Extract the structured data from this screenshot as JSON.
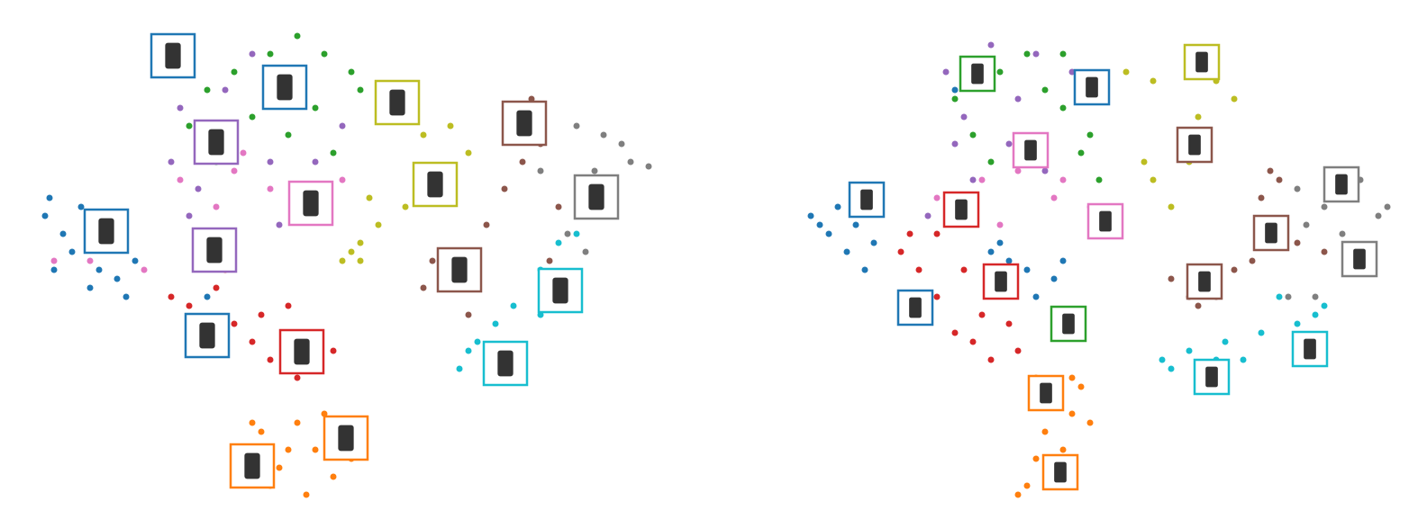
{
  "chart_data": [
    {
      "type": "scatter",
      "xlim": [
        0,
        787
      ],
      "ylim": [
        587,
        0
      ],
      "series": [
        {
          "color": "#1f77b4",
          "x": [
            50,
            70,
            90,
            110,
            130,
            150,
            60,
            100,
            80,
            140,
            120,
            55,
            215,
            230,
            240
          ],
          "values": [
            240,
            260,
            230,
            300,
            310,
            290,
            300,
            320,
            280,
            330,
            270,
            220,
            375,
            330,
            280
          ]
        },
        {
          "color": "#ff7f0e",
          "x": [
            260,
            290,
            310,
            330,
            350,
            370,
            380,
            300,
            340,
            360,
            320,
            280,
            390
          ],
          "values": [
            500,
            480,
            520,
            470,
            500,
            530,
            480,
            540,
            550,
            460,
            500,
            470,
            510
          ]
        },
        {
          "color": "#2ca02c",
          "x": [
            230,
            260,
            300,
            330,
            360,
            390,
            350,
            320,
            280,
            210,
            240,
            370,
            400
          ],
          "values": [
            100,
            80,
            60,
            40,
            60,
            80,
            120,
            150,
            130,
            140,
            180,
            170,
            100
          ]
        },
        {
          "color": "#d62728",
          "x": [
            220,
            240,
            260,
            280,
            300,
            320,
            350,
            370,
            290,
            210,
            330,
            250,
            190
          ],
          "values": [
            290,
            320,
            360,
            380,
            400,
            340,
            370,
            390,
            350,
            340,
            420,
            300,
            330
          ]
        },
        {
          "color": "#9467bd",
          "x": [
            190,
            220,
            250,
            280,
            330,
            300,
            350,
            210,
            240,
            200,
            310,
            380
          ],
          "values": [
            180,
            210,
            100,
            60,
            100,
            180,
            180,
            240,
            160,
            120,
            250,
            140
          ]
        },
        {
          "color": "#8c564b",
          "x": [
            480,
            500,
            520,
            540,
            560,
            580,
            600,
            620,
            590,
            470,
            530,
            610
          ],
          "values": [
            290,
            320,
            350,
            250,
            210,
            180,
            160,
            230,
            110,
            320,
            280,
            290
          ]
        },
        {
          "color": "#e377c2",
          "x": [
            200,
            260,
            300,
            330,
            380,
            100,
            60,
            240,
            270,
            160
          ],
          "values": [
            200,
            190,
            210,
            220,
            200,
            290,
            290,
            230,
            170,
            300
          ]
        },
        {
          "color": "#7f7f7f",
          "x": [
            640,
            670,
            700,
            720,
            660,
            630,
            650,
            680,
            690,
            600
          ],
          "values": [
            140,
            150,
            180,
            185,
            190,
            260,
            280,
            200,
            160,
            190
          ]
        },
        {
          "color": "#bcbd22",
          "x": [
            380,
            400,
            420,
            450,
            470,
            500,
            520,
            410,
            440,
            400,
            480,
            390
          ],
          "values": [
            290,
            270,
            250,
            230,
            150,
            140,
            170,
            220,
            110,
            290,
            220,
            280
          ]
        },
        {
          "color": "#17becf",
          "x": [
            510,
            530,
            550,
            570,
            600,
            630,
            640,
            560,
            580,
            520,
            620,
            600
          ],
          "values": [
            410,
            380,
            360,
            340,
            350,
            330,
            260,
            400,
            420,
            390,
            270,
            300
          ]
        }
      ]
    },
    {
      "type": "scatter",
      "xlim": [
        787,
        1574
      ],
      "ylim": [
        587,
        0
      ],
      "series": [
        {
          "color": "#1f77b4",
          "x": [
            900,
            920,
            940,
            960,
            950,
            930,
            970,
            910,
            1110,
            1140,
            1170,
            1120,
            1180,
            1100,
            1150,
            1060
          ],
          "values": [
            240,
            260,
            280,
            300,
            250,
            230,
            270,
            250,
            270,
            300,
            310,
            290,
            290,
            280,
            330,
            100
          ]
        },
        {
          "color": "#ff7f0e",
          "x": [
            1150,
            1170,
            1190,
            1200,
            1180,
            1150,
            1140,
            1160,
            1210,
            1190,
            1130,
            1170
          ],
          "values": [
            420,
            440,
            460,
            430,
            500,
            510,
            540,
            480,
            470,
            420,
            550,
            520
          ]
        },
        {
          "color": "#2ca02c",
          "x": [
            1060,
            1080,
            1110,
            1140,
            1180,
            1200,
            1220,
            1210,
            1180,
            1160,
            1190,
            1100
          ],
          "values": [
            110,
            150,
            80,
            60,
            120,
            170,
            200,
            150,
            60,
            100,
            360,
            180
          ]
        },
        {
          "color": "#d62728",
          "x": [
            1000,
            1020,
            1040,
            1060,
            1080,
            1100,
            1130,
            1090,
            1010,
            1040,
            1120,
            1070
          ],
          "values": [
            280,
            300,
            330,
            370,
            380,
            400,
            390,
            350,
            260,
            260,
            360,
            300
          ]
        },
        {
          "color": "#9467bd",
          "x": [
            1050,
            1070,
            1100,
            1130,
            1150,
            1160,
            1190,
            1080,
            1030,
            1120,
            1060
          ],
          "values": [
            80,
            130,
            50,
            110,
            60,
            190,
            80,
            200,
            240,
            160,
            160
          ]
        },
        {
          "color": "#8c564b",
          "x": [
            1300,
            1330,
            1350,
            1370,
            1390,
            1400,
            1420,
            1410,
            1440,
            1470,
            1320
          ],
          "values": [
            310,
            340,
            330,
            300,
            290,
            220,
            200,
            190,
            270,
            280,
            330
          ]
        },
        {
          "color": "#e377c2",
          "x": [
            1090,
            1130,
            1180,
            1210,
            1220,
            1040,
            1170,
            1110
          ],
          "values": [
            200,
            190,
            200,
            230,
            240,
            220,
            220,
            250
          ]
        },
        {
          "color": "#7f7f7f",
          "x": [
            1440,
            1470,
            1500,
            1530,
            1510,
            1450,
            1490,
            1540,
            1430,
            1460
          ],
          "values": [
            210,
            230,
            220,
            240,
            200,
            250,
            260,
            230,
            330,
            330
          ]
        },
        {
          "color": "#bcbd22",
          "x": [
            1250,
            1280,
            1320,
            1350,
            1370,
            1280,
            1300,
            1320,
            1270,
            1330
          ],
          "values": [
            80,
            90,
            70,
            90,
            110,
            200,
            230,
            180,
            180,
            130
          ]
        },
        {
          "color": "#17becf",
          "x": [
            1290,
            1320,
            1360,
            1400,
            1440,
            1470,
            1420,
            1380,
            1300,
            1350,
            1460
          ],
          "values": [
            400,
            390,
            380,
            370,
            360,
            340,
            330,
            400,
            410,
            400,
            350
          ]
        }
      ]
    }
  ]
}
